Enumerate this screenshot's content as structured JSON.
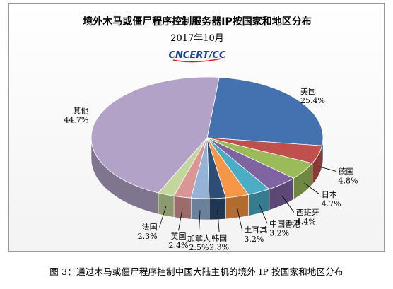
{
  "caption": "图 3：通过木马或僵尸程序控制中国大陆主机的境外 IP 按国家和地区分布",
  "logo": {
    "text": "CNCERT/CC",
    "colors": {
      "primary": "#1f3f9c",
      "accent": "#e02020"
    }
  },
  "chart_data": {
    "type": "pie",
    "title": "境外木马或僵尸程序控制服务器IP按国家和地区分布",
    "subtitle": "2017年10月",
    "legend": "none",
    "slices": [
      {
        "label": "美国",
        "value": 25.4,
        "display": "25.4%",
        "color": "#4472b0"
      },
      {
        "label": "德国",
        "value": 4.8,
        "display": "4.8%",
        "color": "#c0504d"
      },
      {
        "label": "日本",
        "value": 4.7,
        "display": "4.7%",
        "color": "#9bbb59"
      },
      {
        "label": "西班牙",
        "value": 4.4,
        "display": "4.4%",
        "color": "#8064a2"
      },
      {
        "label": "中国香港",
        "value": 3.2,
        "display": "3.2%",
        "color": "#4bacc6"
      },
      {
        "label": "土耳其",
        "value": 3.2,
        "display": "3.2%",
        "color": "#f79646"
      },
      {
        "label": "韩国",
        "value": 2.3,
        "display": "2.3%",
        "color": "#2c4d75"
      },
      {
        "label": "加拿大",
        "value": 2.5,
        "display": "2.5%",
        "color": "#95b3d7"
      },
      {
        "label": "英国",
        "value": 2.4,
        "display": "2.4%",
        "color": "#d99694"
      },
      {
        "label": "法国",
        "value": 2.3,
        "display": "2.3%",
        "color": "#c3d69b"
      },
      {
        "label": "其他",
        "value": 44.7,
        "display": "44.7%",
        "color": "#b2a2c7"
      }
    ]
  }
}
